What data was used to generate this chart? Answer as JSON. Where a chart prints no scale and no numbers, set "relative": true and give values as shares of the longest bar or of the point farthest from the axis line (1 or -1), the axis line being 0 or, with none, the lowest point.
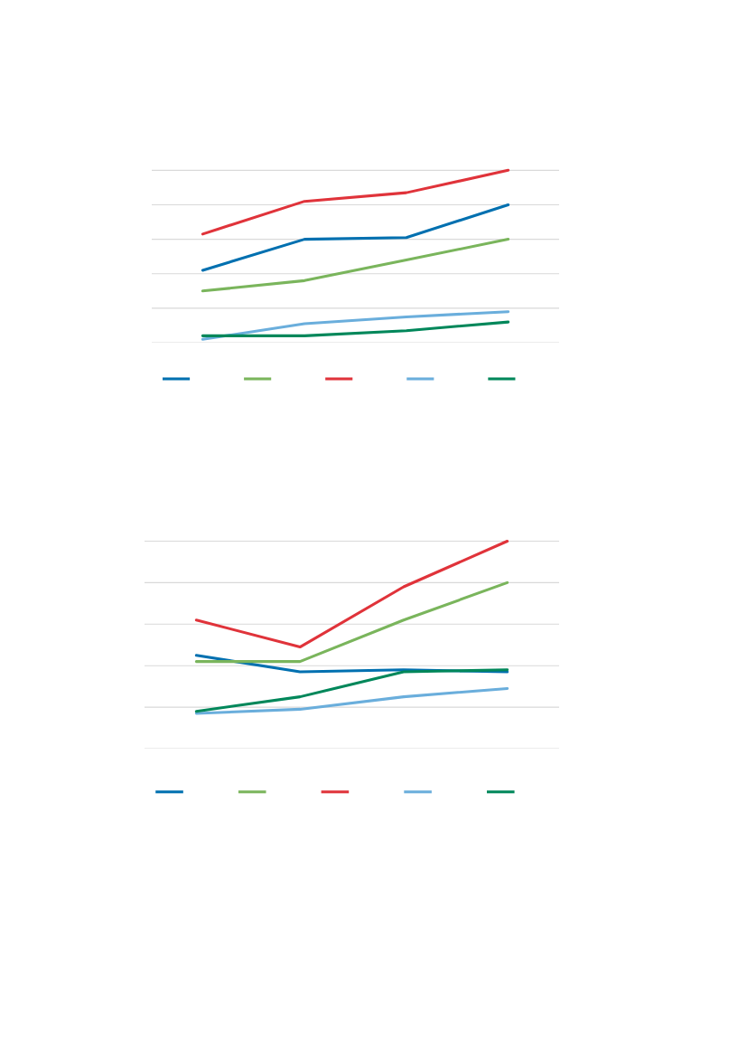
{
  "chart_data": [
    {
      "type": "line",
      "relative": true,
      "categories": [
        null,
        null,
        null,
        null
      ],
      "grid": "y",
      "series": [
        {
          "color": "#0070b0",
          "values": [
            0.42,
            0.6,
            0.61,
            0.8
          ]
        },
        {
          "color": "#7ab55c",
          "values": [
            0.3,
            0.36,
            0.48,
            0.6
          ]
        },
        {
          "color": "#e0333a",
          "values": [
            0.63,
            0.82,
            0.87,
            1
          ]
        },
        {
          "color": "#6aaedc",
          "values": [
            0.02,
            0.11,
            0.15,
            0.18
          ]
        },
        {
          "color": "#00875a",
          "values": [
            0.04,
            0.04,
            0.07,
            0.12
          ]
        }
      ]
    },
    {
      "type": "line",
      "relative": true,
      "categories": [
        null,
        null,
        null,
        null
      ],
      "grid": "y",
      "series": [
        {
          "color": "#0070b0",
          "values": [
            0.45,
            0.37,
            0.38,
            0.37
          ]
        },
        {
          "color": "#7ab55c",
          "values": [
            0.42,
            0.42,
            0.62,
            0.8
          ]
        },
        {
          "color": "#e0333a",
          "values": [
            0.62,
            0.49,
            0.78,
            1
          ]
        },
        {
          "color": "#6aaedc",
          "values": [
            0.17,
            0.19,
            0.25,
            0.29
          ]
        },
        {
          "color": "#00875a",
          "values": [
            0.18,
            0.25,
            0.37,
            0.38
          ]
        }
      ]
    }
  ]
}
